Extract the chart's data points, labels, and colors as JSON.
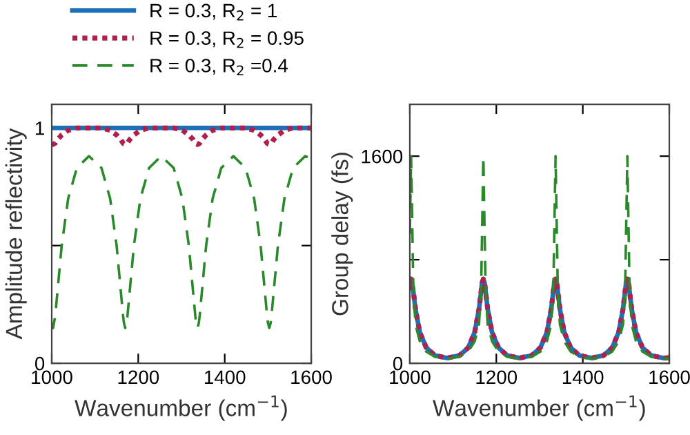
{
  "chart_data": [
    {
      "type": "line",
      "xlabel": "Wavenumber (cm$^{−1}$)",
      "ylabel": "Amplitude reflectivity",
      "x": [
        1000,
        1003,
        1008,
        1013,
        1023,
        1038,
        1058,
        1086,
        1115,
        1135,
        1150,
        1160,
        1165,
        1167,
        1170,
        1173,
        1175,
        1180,
        1190,
        1205,
        1225,
        1253,
        1282,
        1302,
        1317,
        1327,
        1332,
        1334,
        1337,
        1340,
        1342,
        1347,
        1357,
        1372,
        1392,
        1420,
        1448,
        1468,
        1483,
        1493,
        1498,
        1500,
        1503,
        1506,
        1508,
        1513,
        1523,
        1538,
        1558,
        1586,
        1600
      ],
      "series": [
        {
          "name": "R = 0.3, R$_{2}$ = 1",
          "color": "#1f6fb8",
          "line_style": "solid",
          "values": [
            1,
            1,
            1,
            1,
            1,
            1,
            1,
            1,
            1,
            1,
            1,
            1,
            1,
            1,
            1,
            1,
            1,
            1,
            1,
            1,
            1,
            1,
            1,
            1,
            1,
            1,
            1,
            1,
            1,
            1,
            1,
            1,
            1,
            1,
            1,
            1,
            1,
            1,
            1,
            1,
            1,
            1,
            1,
            1,
            1,
            1,
            1,
            1,
            1,
            1,
            1
          ]
        },
        {
          "name": "R = 0.3, R$_{2}$ = 0.95",
          "color": "#b0204a",
          "line_style": "dotted",
          "values": [
            0.932,
            0.93,
            0.935,
            0.95,
            0.97,
            0.99,
            1.0,
            1.0,
            1.0,
            0.99,
            0.97,
            0.95,
            0.935,
            0.932,
            0.93,
            0.932,
            0.935,
            0.95,
            0.97,
            0.99,
            1.0,
            1.0,
            1.0,
            0.99,
            0.97,
            0.95,
            0.935,
            0.932,
            0.93,
            0.932,
            0.935,
            0.95,
            0.97,
            0.99,
            1.0,
            1.0,
            1.0,
            0.99,
            0.97,
            0.95,
            0.935,
            0.932,
            0.93,
            0.932,
            0.935,
            0.95,
            0.97,
            0.99,
            1.0,
            1.0,
            1.0
          ]
        },
        {
          "name": "R = 0.3, R$_{2}$ =0.4",
          "color": "#2a8a2a",
          "line_style": "dashed",
          "values": [
            0.17,
            0.15,
            0.2,
            0.3,
            0.5,
            0.7,
            0.83,
            0.88,
            0.83,
            0.7,
            0.5,
            0.3,
            0.2,
            0.17,
            0.15,
            0.17,
            0.2,
            0.3,
            0.5,
            0.7,
            0.83,
            0.88,
            0.83,
            0.7,
            0.5,
            0.3,
            0.2,
            0.17,
            0.15,
            0.17,
            0.2,
            0.3,
            0.5,
            0.7,
            0.83,
            0.88,
            0.83,
            0.7,
            0.5,
            0.3,
            0.2,
            0.17,
            0.15,
            0.17,
            0.2,
            0.3,
            0.5,
            0.7,
            0.83,
            0.88,
            0.87
          ]
        }
      ],
      "xlim": [
        1000,
        1600
      ],
      "xticks": [
        1000,
        1200,
        1400,
        1600
      ],
      "ylim": [
        0,
        1.1
      ],
      "yticks": [
        0,
        {
          "value": 0.5,
          "label": null
        },
        1
      ],
      "grid": false,
      "legend": "top left"
    },
    {
      "type": "line",
      "xlabel": "Wavenumber (cm$^{−1}$)",
      "ylabel": "Group delay (fs)",
      "x": [
        1000,
        1003,
        1008,
        1013,
        1023,
        1038,
        1058,
        1086,
        1115,
        1135,
        1150,
        1160,
        1165,
        1167,
        1170,
        1173,
        1175,
        1180,
        1190,
        1205,
        1225,
        1253,
        1282,
        1302,
        1317,
        1327,
        1332,
        1334,
        1337,
        1340,
        1342,
        1347,
        1357,
        1372,
        1392,
        1420,
        1448,
        1468,
        1483,
        1493,
        1498,
        1500,
        1503,
        1506,
        1508,
        1513,
        1523,
        1538,
        1558,
        1586,
        1600
      ],
      "series": [
        {
          "color": "#1f6fb8",
          "line_style": "solid",
          "values": [
            620,
            650,
            560,
            420,
            240,
            120,
            60,
            40,
            60,
            120,
            240,
            420,
            560,
            620,
            650,
            620,
            560,
            420,
            240,
            120,
            60,
            40,
            60,
            120,
            240,
            420,
            560,
            620,
            650,
            620,
            560,
            420,
            240,
            120,
            60,
            40,
            60,
            120,
            240,
            420,
            560,
            620,
            650,
            620,
            560,
            420,
            240,
            120,
            60,
            40,
            42
          ]
        },
        {
          "color": "#b0204a",
          "line_style": "dotted",
          "values": [
            620,
            650,
            560,
            420,
            240,
            120,
            60,
            40,
            60,
            120,
            240,
            420,
            560,
            620,
            650,
            620,
            560,
            420,
            240,
            120,
            60,
            40,
            60,
            120,
            240,
            420,
            560,
            620,
            650,
            620,
            560,
            420,
            240,
            120,
            60,
            40,
            60,
            120,
            240,
            420,
            560,
            620,
            650,
            620,
            560,
            420,
            240,
            120,
            60,
            40,
            42
          ]
        },
        {
          "color": "#2a8a2a",
          "line_style": "dashed",
          "values": [
            1000,
            1600,
            600,
            300,
            170,
            90,
            50,
            35,
            50,
            90,
            170,
            300,
            600,
            1000,
            1600,
            1000,
            600,
            300,
            170,
            90,
            50,
            35,
            50,
            90,
            170,
            300,
            600,
            1000,
            1600,
            1000,
            600,
            300,
            170,
            90,
            50,
            35,
            50,
            90,
            170,
            300,
            600,
            1000,
            1600,
            1000,
            600,
            300,
            170,
            90,
            50,
            35,
            37
          ]
        }
      ],
      "xlim": [
        1000,
        1600
      ],
      "xticks": [
        1000,
        1200,
        1400,
        1600
      ],
      "ylim": [
        0,
        2000
      ],
      "yticks": [
        0,
        {
          "value": 800,
          "label": null
        },
        1600
      ],
      "grid": false,
      "legend": false
    }
  ]
}
